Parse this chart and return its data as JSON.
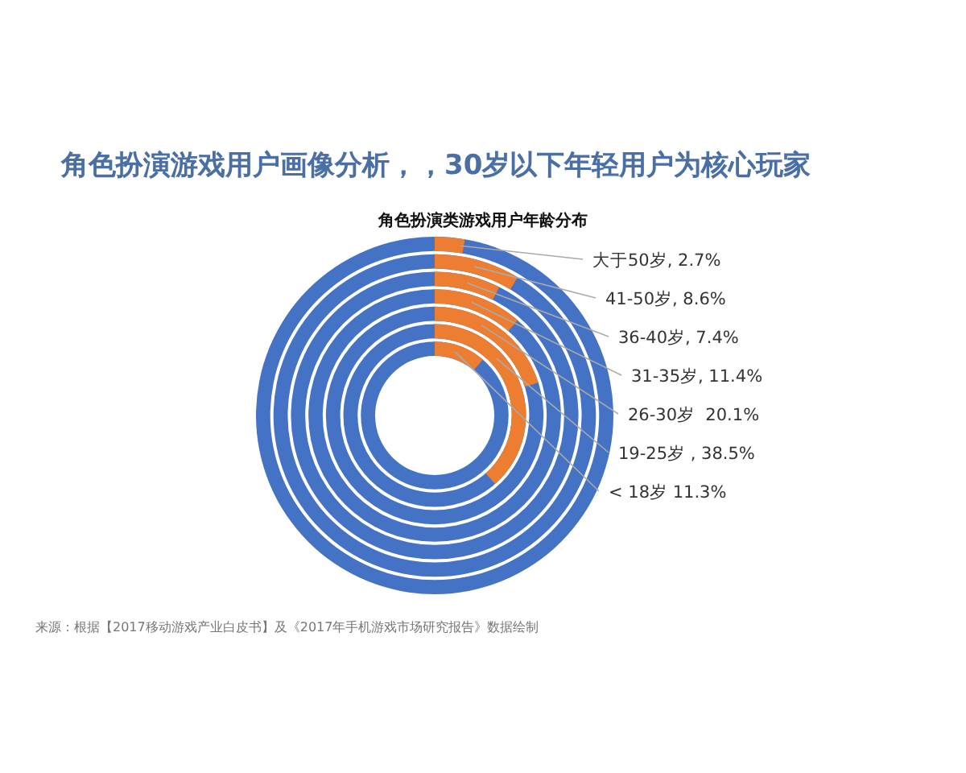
{
  "chart_data": {
    "type": "other",
    "title": "角色扮演游戏用户画像分析，，30岁以下年轻用户为核心玩家",
    "subtitle": "角色扮演类游戏用户年龄分布",
    "series": [
      {
        "color": "#ed7d31",
        "values": [
          2.7,
          8.6,
          7.4,
          11.4,
          20.1,
          38.5,
          11.3
        ],
        "value_labels": [
          "大于50岁, 2.7%",
          "41-50岁, 8.6%",
          "36-40岁, 7.4%",
          "31-35岁, 11.4%",
          "26-30岁  20.1%",
          "19-25岁 , 38.5%",
          "< 18岁 11.3%"
        ]
      }
    ],
    "annotations": [
      "来源：根据【2017移动游戏产业白皮书】及《2017年手机游戏市场研究报告》数据绘制"
    ]
  }
}
